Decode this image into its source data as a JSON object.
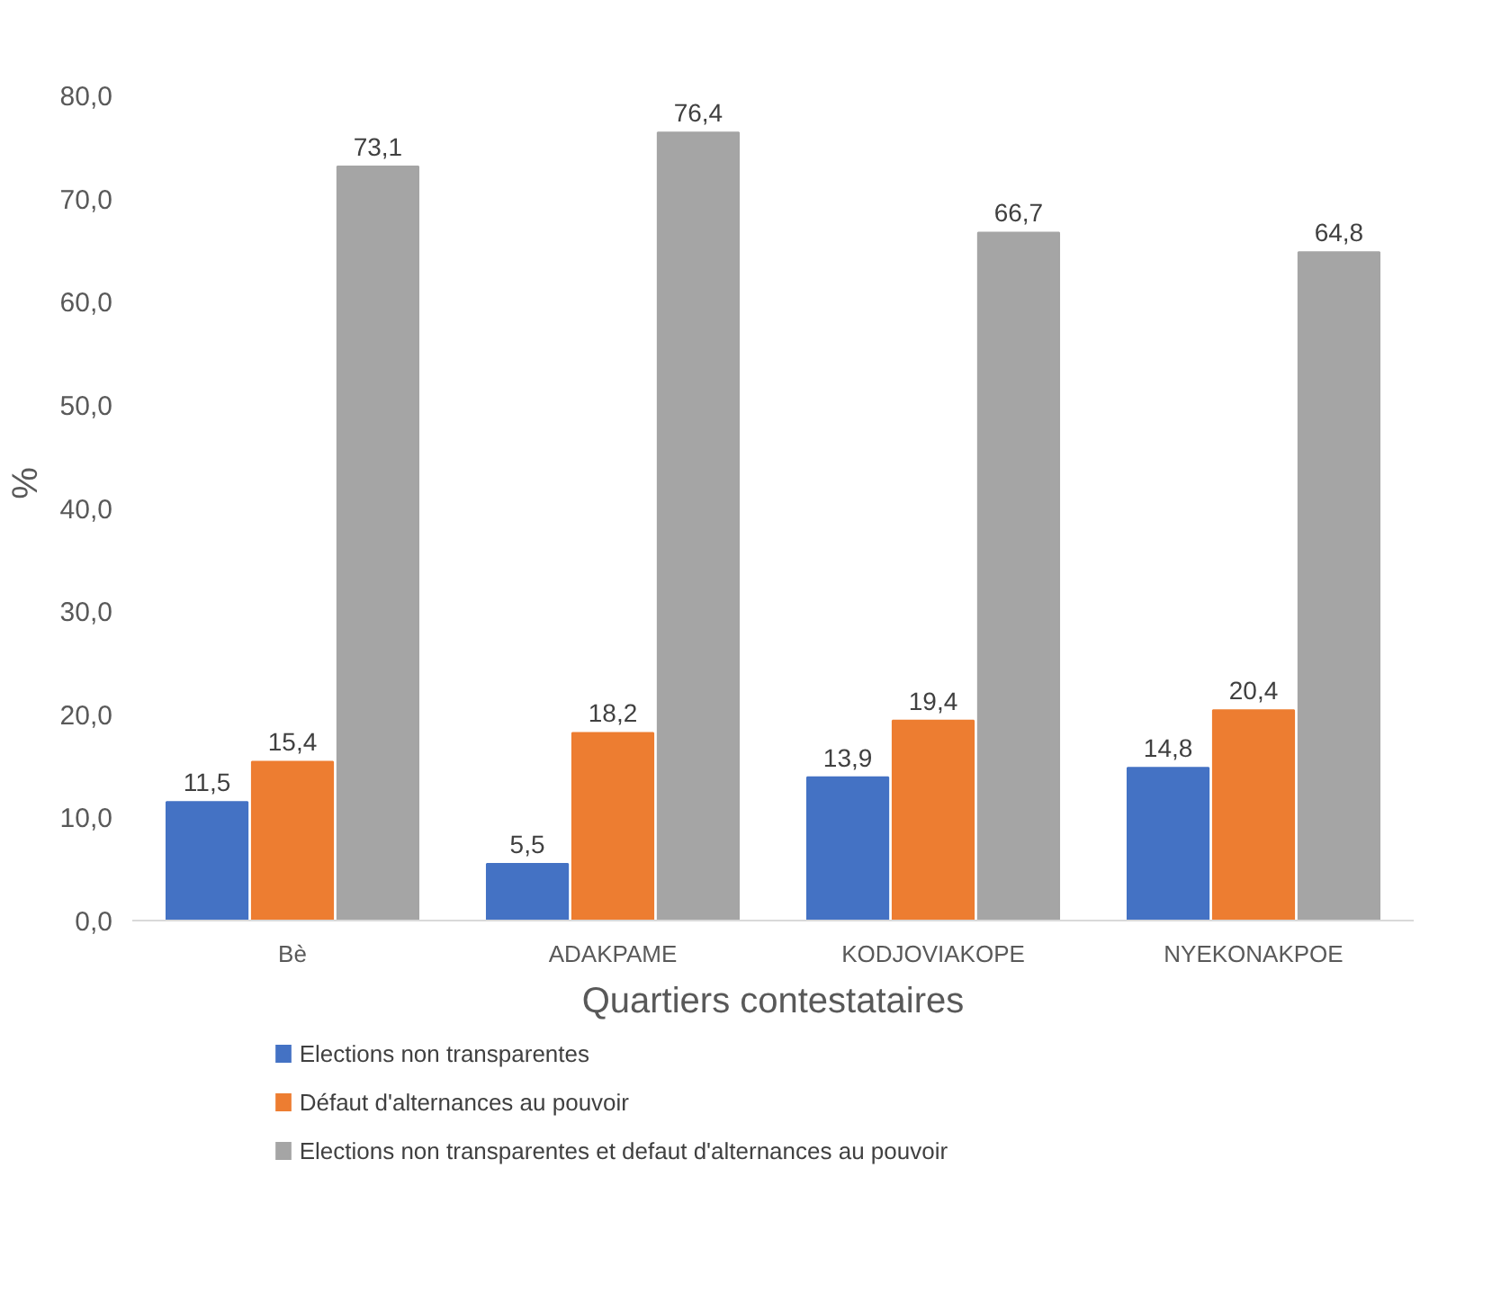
{
  "chart_data": {
    "type": "bar",
    "xlabel": "Quartiers contestataires",
    "ylabel": "%",
    "categories": [
      "Bè",
      "ADAKPAME",
      "KODJOVIAKOPE",
      "NYEKONAKPOE"
    ],
    "series": [
      {
        "name": "Elections  non transparentes",
        "color": "#4472c4",
        "values": [
          11.5,
          5.5,
          13.9,
          14.8
        ]
      },
      {
        "name": "Défaut d'alternances au pouvoir",
        "color": "#ed7d31",
        "values": [
          15.4,
          18.2,
          19.4,
          20.4
        ]
      },
      {
        "name": "Elections non transparentes et defaut d'alternances au pouvoir",
        "color": "#a5a5a5",
        "values": [
          73.1,
          76.4,
          66.7,
          64.8
        ]
      }
    ],
    "value_labels": [
      [
        "11,5",
        "5,5",
        "13,9",
        "14,8"
      ],
      [
        "15,4",
        "18,2",
        "19,4",
        "20,4"
      ],
      [
        "73,1",
        "76,4",
        "66,7",
        "64,8"
      ]
    ],
    "ylim": [
      0,
      80
    ],
    "yticks": [
      {
        "value": 0,
        "label": "0,0"
      },
      {
        "value": 10,
        "label": "10,0"
      },
      {
        "value": 20,
        "label": "20,0"
      },
      {
        "value": 30,
        "label": "30,0"
      },
      {
        "value": 40,
        "label": "40,0"
      },
      {
        "value": 50,
        "label": "50,0"
      },
      {
        "value": 60,
        "label": "60,0"
      },
      {
        "value": 70,
        "label": "70,0"
      },
      {
        "value": 80,
        "label": "80,0"
      }
    ],
    "legend": "bottom",
    "grid": false
  }
}
